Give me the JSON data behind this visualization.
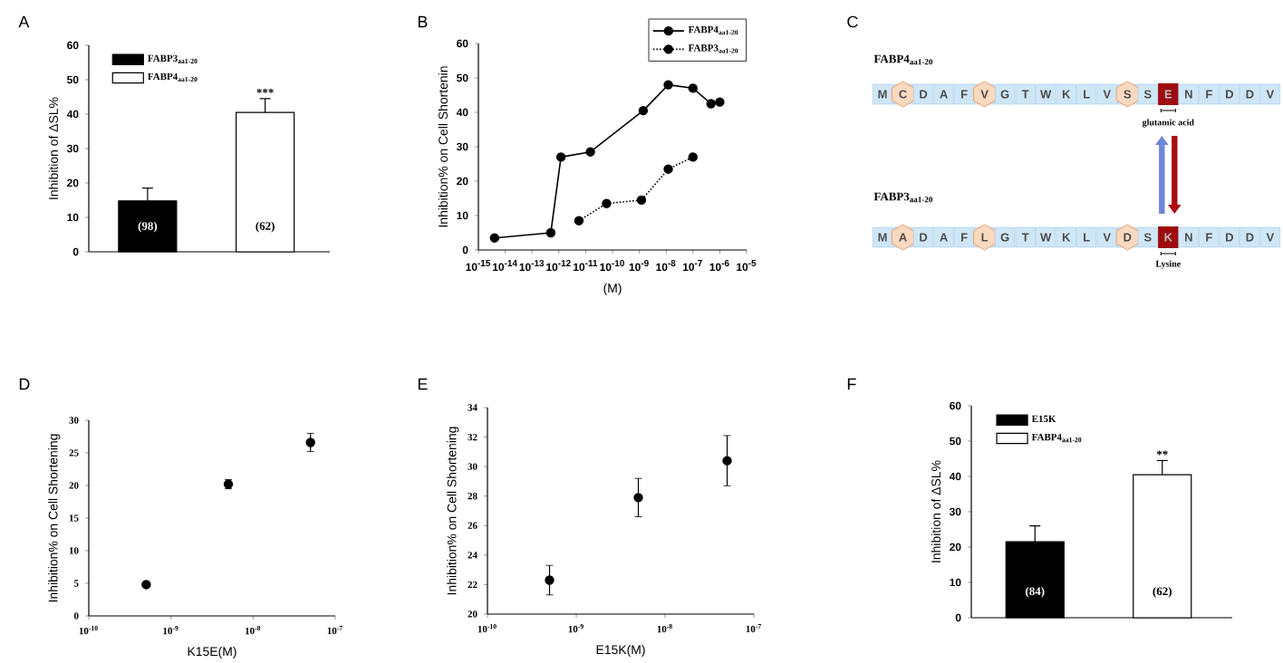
{
  "chart_data": [
    {
      "type": "bar",
      "title": "A",
      "ylabel": "Inhibition of ΔSL%",
      "categories": [
        null,
        null
      ],
      "ylim": [
        0,
        60
      ],
      "yticks": [
        0,
        10,
        20,
        30,
        40,
        50,
        60
      ],
      "legend": "top left",
      "series": [
        {
          "name": "FABP3$_{aa1-20}$",
          "color": "#000000",
          "values": [
            14.8,
            null
          ],
          "errors": [
            3.7,
            null
          ]
        },
        {
          "name": "FABP4$_{aa1-20}$",
          "color": "#ffffff",
          "values": [
            null,
            40.5
          ],
          "errors": [
            null,
            4
          ]
        }
      ],
      "annotations": [
        "(98)",
        "(62)",
        "***"
      ]
    },
    {
      "type": "line",
      "title": "B",
      "xlabel": "(M)",
      "ylabel": "Inhibition% on Cell Shortenin",
      "log": "x",
      "xlim": [
        1e-15,
        1e-05
      ],
      "xticks": [
        {
          "value": 1e-15,
          "label": "10$^{-15}$"
        },
        {
          "value": 1e-14,
          "label": "10$^{-14}$"
        },
        {
          "value": 1e-13,
          "label": "10$^{-13}$"
        },
        {
          "value": 1e-12,
          "label": "10$^{-12}$"
        },
        {
          "value": 1e-11,
          "label": "10$^{-11}$"
        },
        {
          "value": 1e-10,
          "label": "10$^{-10}$"
        },
        {
          "value": 1e-09,
          "label": "10$^{-9}$"
        },
        {
          "value": 1e-08,
          "label": "10$^{-8}$"
        },
        {
          "value": 1e-07,
          "label": "10$^{-7}$"
        },
        {
          "value": 1e-06,
          "label": "10$^{-6}$"
        },
        {
          "value": 1e-05,
          "label": "10$^{-5}$"
        }
      ],
      "ylim": [
        0,
        60
      ],
      "yticks": [
        0,
        10,
        20,
        30,
        40,
        50,
        60
      ],
      "legend": "top right",
      "marker": "circle",
      "series": [
        {
          "name": "FABP4$_{aa1-20}$",
          "color": "#000000",
          "line_style": "solid",
          "x": [
            4e-15,
            5e-13,
            1.2e-12,
            1.5e-11,
            1.4e-09,
            1.2e-08,
            1e-07,
            4.7e-07,
            1e-06
          ],
          "values": [
            3.5,
            5,
            27,
            28.5,
            40.5,
            48,
            47,
            42.5,
            43
          ]
        },
        {
          "name": "FABP3$_{aa1-20}$",
          "color": "#000000",
          "line_style": "dotted",
          "x": [
            5.6e-12,
            6e-11,
            1.2e-09,
            1.2e-08,
            1e-07
          ],
          "values": [
            8.5,
            13.5,
            14.5,
            23.5,
            27
          ]
        }
      ]
    },
    {
      "type": "other",
      "title": "C",
      "annotations": [
        "FABP4$_{aa1-20}$",
        "M",
        "C",
        "D",
        "A",
        "F",
        "V",
        "G",
        "T",
        "W",
        "K",
        "L",
        "V",
        "S",
        "S",
        "E",
        "N",
        "F",
        "D",
        "D",
        "V",
        "glutamic acid",
        "FABP3$_{aa1-20}$",
        "M",
        "A",
        "D",
        "A",
        "F",
        "L",
        "G",
        "T",
        "W",
        "K",
        "L",
        "V",
        "D",
        "S",
        "K",
        "N",
        "F",
        "D",
        "D",
        "V",
        "Lysine"
      ]
    },
    {
      "type": "scatter",
      "title": "D",
      "xlabel": "K15E(M)",
      "ylabel": "Inhibition% on Cell Shortening",
      "log": "x",
      "xlim": [
        1e-10,
        1e-07
      ],
      "xticks": [
        {
          "value": 1e-10,
          "label": "10$^{-10}$"
        },
        {
          "value": 1e-09,
          "label": "10$^{-9}$"
        },
        {
          "value": 1e-08,
          "label": "10$^{-8}$"
        },
        {
          "value": 1e-07,
          "label": "10$^{-7}$"
        }
      ],
      "ylim": [
        0,
        30
      ],
      "yticks": [
        0,
        5,
        10,
        15,
        20,
        25,
        30
      ],
      "marker": "circle",
      "color": "#000000",
      "x": [
        5e-10,
        5e-09,
        5e-08
      ],
      "values": [
        4.8,
        20.2,
        26.6
      ],
      "errors": [
        0.3,
        0.7,
        1.4
      ]
    },
    {
      "type": "scatter",
      "title": "E",
      "xlabel": "E15K(M)",
      "ylabel": "Inhibition% on Cell Shortening",
      "log": "x",
      "xlim": [
        1e-10,
        1e-07
      ],
      "xticks": [
        {
          "value": 1e-10,
          "label": "10$^{-10}$"
        },
        {
          "value": 1e-09,
          "label": "10$^{-9}$"
        },
        {
          "value": 1e-08,
          "label": "10$^{-8}$"
        },
        {
          "value": 1e-07,
          "label": "10$^{-7}$"
        }
      ],
      "ylim": [
        20,
        34
      ],
      "yticks": [
        20,
        22,
        24,
        26,
        28,
        30,
        32,
        34
      ],
      "marker": "circle",
      "color": "#000000",
      "x": [
        5e-10,
        5e-09,
        5e-08
      ],
      "values": [
        22.3,
        27.9,
        30.4
      ],
      "errors": [
        1,
        1.3,
        1.7
      ]
    },
    {
      "type": "bar",
      "title": "F",
      "ylabel": "Inhibition of ΔSL%",
      "categories": [
        null,
        null
      ],
      "ylim": [
        0,
        60
      ],
      "yticks": [
        0,
        10,
        20,
        30,
        40,
        50,
        60
      ],
      "legend": "top left",
      "series": [
        {
          "name": "E15K",
          "color": "#000000",
          "values": [
            21.5,
            null
          ],
          "errors": [
            4.5,
            null
          ]
        },
        {
          "name": "FABP4$_{aa1-20}$",
          "color": "#ffffff",
          "values": [
            null,
            40.5
          ],
          "errors": [
            null,
            4
          ]
        }
      ],
      "annotations": [
        "(84)",
        "(62)",
        "**"
      ]
    }
  ]
}
